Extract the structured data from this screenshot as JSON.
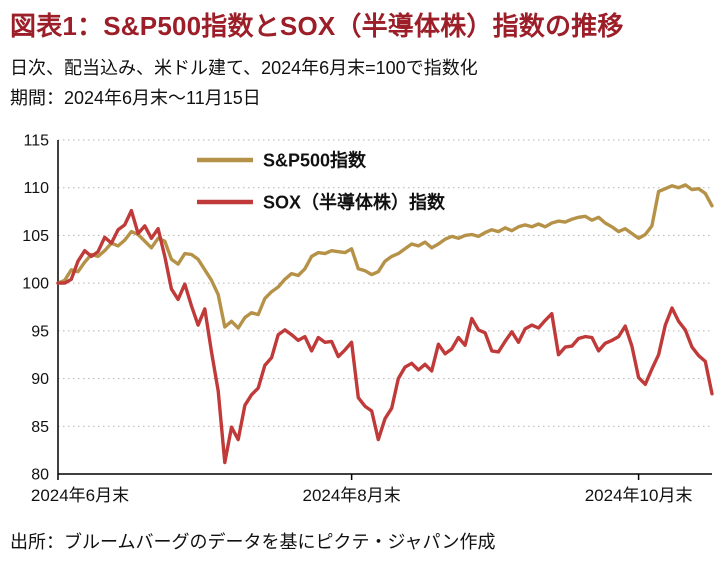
{
  "header": {
    "title": "図表1：S&P500指数とSOX（半導体株）指数の推移",
    "subtitle_line1": "日次、配当込み、米ドル建て、2024年6月末=100で指数化",
    "subtitle_line2": "期間：2024年6月末～11月15日"
  },
  "source": "出所：ブルームバーグのデータを基にピクテ・ジャパン作成",
  "colors": {
    "title": "#9b1e28",
    "axis": "#000000",
    "grid": "#b3b3b3",
    "text": "#111111",
    "sp500": "#b59248",
    "sox": "#bf3a39"
  },
  "chart_data": {
    "type": "line",
    "title": "S&P500指数とSOX（半導体株）指数の推移",
    "xlabel": "",
    "ylabel": "",
    "ylim": [
      80,
      115
    ],
    "ytick_step": 5,
    "grid": "horizontal-dotted",
    "legend_position": "top-left-inside",
    "x_unit": "daily trading days, 2024-06-28 to 2024-11-15, indexed to 100 at 2024-06-28",
    "xticks": [
      {
        "index": 0,
        "label": "2024年6月末"
      },
      {
        "index": 44,
        "label": "2024年8月末"
      },
      {
        "index": 87,
        "label": "2024年10月末"
      }
    ],
    "series": [
      {
        "name": "S&P500指数",
        "color": "#b59248",
        "values": [
          100.0,
          100.3,
          101.4,
          101.2,
          102.2,
          103.0,
          102.8,
          103.4,
          104.2,
          103.9,
          104.5,
          105.4,
          105.1,
          104.4,
          103.7,
          104.7,
          104.4,
          102.5,
          102.0,
          103.1,
          103.0,
          102.5,
          101.4,
          100.3,
          98.8,
          95.4,
          96.0,
          95.3,
          96.4,
          96.9,
          96.7,
          98.4,
          99.1,
          99.6,
          100.4,
          101.0,
          100.8,
          101.5,
          102.8,
          103.2,
          103.1,
          103.4,
          103.3,
          103.2,
          103.6,
          101.5,
          101.3,
          100.9,
          101.2,
          102.3,
          102.8,
          103.1,
          103.6,
          104.1,
          103.9,
          104.3,
          103.7,
          104.1,
          104.6,
          104.9,
          104.7,
          105.0,
          105.1,
          104.9,
          105.3,
          105.6,
          105.4,
          105.8,
          105.5,
          105.9,
          106.1,
          105.9,
          106.2,
          105.9,
          106.3,
          106.5,
          106.4,
          106.7,
          106.9,
          107.0,
          106.6,
          106.9,
          106.3,
          105.9,
          105.4,
          105.7,
          105.2,
          104.7,
          105.1,
          106.0,
          109.6,
          109.9,
          110.2,
          110.0,
          110.3,
          109.8,
          109.9,
          109.4,
          108.1
        ]
      },
      {
        "name": "SOX（半導体株）指数",
        "color": "#bf3a39",
        "values": [
          100.0,
          100.0,
          100.4,
          102.3,
          103.4,
          102.8,
          103.3,
          104.8,
          104.2,
          105.6,
          106.1,
          107.6,
          105.2,
          106.0,
          104.7,
          105.7,
          102.8,
          99.4,
          98.3,
          99.9,
          97.6,
          95.6,
          97.3,
          92.8,
          88.7,
          81.2,
          84.9,
          83.6,
          87.2,
          88.3,
          89.0,
          91.4,
          92.2,
          94.6,
          95.1,
          94.6,
          94.0,
          94.4,
          92.9,
          94.3,
          93.8,
          93.9,
          92.3,
          93.0,
          93.8,
          88.0,
          87.1,
          86.6,
          83.6,
          85.8,
          86.9,
          90.0,
          91.2,
          91.6,
          90.9,
          91.5,
          90.8,
          93.6,
          92.6,
          93.1,
          94.3,
          93.5,
          96.3,
          95.1,
          94.8,
          92.9,
          92.8,
          93.9,
          94.9,
          93.8,
          95.2,
          95.6,
          95.3,
          96.1,
          96.8,
          92.5,
          93.3,
          93.4,
          94.2,
          94.4,
          94.3,
          92.9,
          93.7,
          94.0,
          94.4,
          95.5,
          93.4,
          90.1,
          89.4,
          91.0,
          92.5,
          95.6,
          97.4,
          96.0,
          95.1,
          93.3,
          92.4,
          91.8,
          88.4
        ]
      }
    ]
  }
}
